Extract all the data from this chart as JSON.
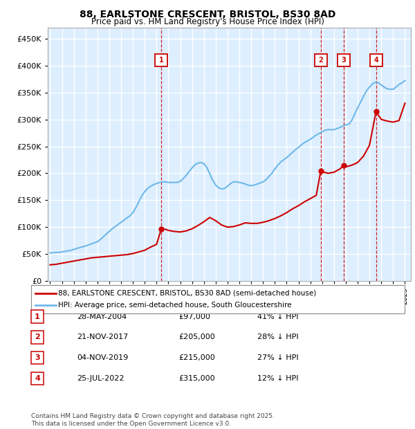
{
  "title": "88, EARLSTONE CRESCENT, BRISTOL, BS30 8AD",
  "subtitle": "Price paid vs. HM Land Registry's House Price Index (HPI)",
  "ylabel_values": [
    0,
    50000,
    100000,
    150000,
    200000,
    250000,
    300000,
    350000,
    400000,
    450000
  ],
  "ylim": [
    0,
    470000
  ],
  "xlim_start": 1994.8,
  "xlim_end": 2025.5,
  "legend_line1": "88, EARLSTONE CRESCENT, BRISTOL, BS30 8AD (semi-detached house)",
  "legend_line2": "HPI: Average price, semi-detached house, South Gloucestershire",
  "transactions": [
    {
      "num": 1,
      "date": "28-MAY-2004",
      "price": 97000,
      "note": "41% ↓ HPI",
      "year": 2004.41
    },
    {
      "num": 2,
      "date": "21-NOV-2017",
      "price": 205000,
      "note": "28% ↓ HPI",
      "year": 2017.89
    },
    {
      "num": 3,
      "date": "04-NOV-2019",
      "price": 215000,
      "note": "27% ↓ HPI",
      "year": 2019.84
    },
    {
      "num": 4,
      "date": "25-JUL-2022",
      "price": 315000,
      "note": "12% ↓ HPI",
      "year": 2022.56
    }
  ],
  "footnote": "Contains HM Land Registry data © Crown copyright and database right 2025.\nThis data is licensed under the Open Government Licence v3.0.",
  "hpi_color": "#6eb8e8",
  "price_color": "#cc0000",
  "transaction_color": "#cc0000",
  "bg_color": "#ddeeff",
  "grid_color": "#ffffff",
  "vline_color": "#cc0000",
  "hpi_data": [
    [
      1995.0,
      52000
    ],
    [
      1995.25,
      52500
    ],
    [
      1995.5,
      53000
    ],
    [
      1995.75,
      53200
    ],
    [
      1996.0,
      54000
    ],
    [
      1996.25,
      55000
    ],
    [
      1996.5,
      56000
    ],
    [
      1996.75,
      57000
    ],
    [
      1997.0,
      58500
    ],
    [
      1997.25,
      60500
    ],
    [
      1997.5,
      62000
    ],
    [
      1997.75,
      63500
    ],
    [
      1998.0,
      65000
    ],
    [
      1998.25,
      67000
    ],
    [
      1998.5,
      69000
    ],
    [
      1998.75,
      71000
    ],
    [
      1999.0,
      73000
    ],
    [
      1999.25,
      77000
    ],
    [
      1999.5,
      82000
    ],
    [
      1999.75,
      87000
    ],
    [
      2000.0,
      92000
    ],
    [
      2000.25,
      97000
    ],
    [
      2000.5,
      101000
    ],
    [
      2000.75,
      105000
    ],
    [
      2001.0,
      109000
    ],
    [
      2001.25,
      113000
    ],
    [
      2001.5,
      117000
    ],
    [
      2001.75,
      121000
    ],
    [
      2002.0,
      127000
    ],
    [
      2002.25,
      136000
    ],
    [
      2002.5,
      147000
    ],
    [
      2002.75,
      158000
    ],
    [
      2003.0,
      166000
    ],
    [
      2003.25,
      172000
    ],
    [
      2003.5,
      176000
    ],
    [
      2003.75,
      179000
    ],
    [
      2004.0,
      181000
    ],
    [
      2004.25,
      183000
    ],
    [
      2004.5,
      184000
    ],
    [
      2004.75,
      184000
    ],
    [
      2005.0,
      183000
    ],
    [
      2005.25,
      183000
    ],
    [
      2005.5,
      183000
    ],
    [
      2005.75,
      183000
    ],
    [
      2006.0,
      185000
    ],
    [
      2006.25,
      190000
    ],
    [
      2006.5,
      196000
    ],
    [
      2006.75,
      203000
    ],
    [
      2007.0,
      210000
    ],
    [
      2007.25,
      216000
    ],
    [
      2007.5,
      219000
    ],
    [
      2007.75,
      220000
    ],
    [
      2008.0,
      218000
    ],
    [
      2008.25,
      211000
    ],
    [
      2008.5,
      199000
    ],
    [
      2008.75,
      187000
    ],
    [
      2009.0,
      178000
    ],
    [
      2009.25,
      173000
    ],
    [
      2009.5,
      171000
    ],
    [
      2009.75,
      172000
    ],
    [
      2010.0,
      176000
    ],
    [
      2010.25,
      181000
    ],
    [
      2010.5,
      184000
    ],
    [
      2010.75,
      184000
    ],
    [
      2011.0,
      183000
    ],
    [
      2011.25,
      182000
    ],
    [
      2011.5,
      180000
    ],
    [
      2011.75,
      178000
    ],
    [
      2012.0,
      177000
    ],
    [
      2012.25,
      178000
    ],
    [
      2012.5,
      180000
    ],
    [
      2012.75,
      182000
    ],
    [
      2013.0,
      184000
    ],
    [
      2013.25,
      188000
    ],
    [
      2013.5,
      194000
    ],
    [
      2013.75,
      200000
    ],
    [
      2014.0,
      208000
    ],
    [
      2014.25,
      215000
    ],
    [
      2014.5,
      221000
    ],
    [
      2014.75,
      225000
    ],
    [
      2015.0,
      229000
    ],
    [
      2015.25,
      234000
    ],
    [
      2015.5,
      239000
    ],
    [
      2015.75,
      244000
    ],
    [
      2016.0,
      248000
    ],
    [
      2016.25,
      253000
    ],
    [
      2016.5,
      257000
    ],
    [
      2016.75,
      260000
    ],
    [
      2017.0,
      263000
    ],
    [
      2017.25,
      267000
    ],
    [
      2017.5,
      271000
    ],
    [
      2017.75,
      274000
    ],
    [
      2018.0,
      277000
    ],
    [
      2018.25,
      280000
    ],
    [
      2018.5,
      281000
    ],
    [
      2018.75,
      281000
    ],
    [
      2019.0,
      281000
    ],
    [
      2019.25,
      283000
    ],
    [
      2019.5,
      285000
    ],
    [
      2019.75,
      288000
    ],
    [
      2020.0,
      290000
    ],
    [
      2020.25,
      291000
    ],
    [
      2020.5,
      298000
    ],
    [
      2020.75,
      310000
    ],
    [
      2021.0,
      321000
    ],
    [
      2021.25,
      332000
    ],
    [
      2021.5,
      343000
    ],
    [
      2021.75,
      353000
    ],
    [
      2022.0,
      360000
    ],
    [
      2022.25,
      366000
    ],
    [
      2022.5,
      369000
    ],
    [
      2022.75,
      368000
    ],
    [
      2023.0,
      364000
    ],
    [
      2023.25,
      360000
    ],
    [
      2023.5,
      357000
    ],
    [
      2023.75,
      356000
    ],
    [
      2024.0,
      356000
    ],
    [
      2024.25,
      360000
    ],
    [
      2024.5,
      365000
    ],
    [
      2024.75,
      368000
    ],
    [
      2025.0,
      372000
    ]
  ],
  "price_data": [
    [
      1995.0,
      30000
    ],
    [
      1995.5,
      31000
    ],
    [
      1996.0,
      33000
    ],
    [
      1996.5,
      35000
    ],
    [
      1997.0,
      37000
    ],
    [
      1997.5,
      39000
    ],
    [
      1998.0,
      41000
    ],
    [
      1998.5,
      43000
    ],
    [
      1999.0,
      44000
    ],
    [
      1999.5,
      45000
    ],
    [
      2000.0,
      46000
    ],
    [
      2000.5,
      47000
    ],
    [
      2001.0,
      48000
    ],
    [
      2001.5,
      49000
    ],
    [
      2002.0,
      51000
    ],
    [
      2002.5,
      54000
    ],
    [
      2003.0,
      57000
    ],
    [
      2003.5,
      63000
    ],
    [
      2004.0,
      68000
    ],
    [
      2004.41,
      97000
    ],
    [
      2004.75,
      96000
    ],
    [
      2005.0,
      94000
    ],
    [
      2005.5,
      92000
    ],
    [
      2006.0,
      91000
    ],
    [
      2006.5,
      93000
    ],
    [
      2007.0,
      97000
    ],
    [
      2007.5,
      103000
    ],
    [
      2008.0,
      110000
    ],
    [
      2008.5,
      118000
    ],
    [
      2009.0,
      112000
    ],
    [
      2009.5,
      104000
    ],
    [
      2010.0,
      100000
    ],
    [
      2010.5,
      101000
    ],
    [
      2011.0,
      104000
    ],
    [
      2011.5,
      108000
    ],
    [
      2012.0,
      107000
    ],
    [
      2012.5,
      107000
    ],
    [
      2013.0,
      109000
    ],
    [
      2013.5,
      112000
    ],
    [
      2014.0,
      116000
    ],
    [
      2014.5,
      121000
    ],
    [
      2015.0,
      127000
    ],
    [
      2015.5,
      134000
    ],
    [
      2016.0,
      140000
    ],
    [
      2016.5,
      147000
    ],
    [
      2017.0,
      153000
    ],
    [
      2017.5,
      159000
    ],
    [
      2017.89,
      205000
    ],
    [
      2018.0,
      203000
    ],
    [
      2018.5,
      200000
    ],
    [
      2019.0,
      202000
    ],
    [
      2019.5,
      208000
    ],
    [
      2019.84,
      215000
    ],
    [
      2020.0,
      212000
    ],
    [
      2020.5,
      215000
    ],
    [
      2021.0,
      220000
    ],
    [
      2021.5,
      232000
    ],
    [
      2022.0,
      252000
    ],
    [
      2022.56,
      315000
    ],
    [
      2022.75,
      308000
    ],
    [
      2023.0,
      300000
    ],
    [
      2023.5,
      297000
    ],
    [
      2024.0,
      295000
    ],
    [
      2024.5,
      298000
    ],
    [
      2025.0,
      330000
    ]
  ]
}
